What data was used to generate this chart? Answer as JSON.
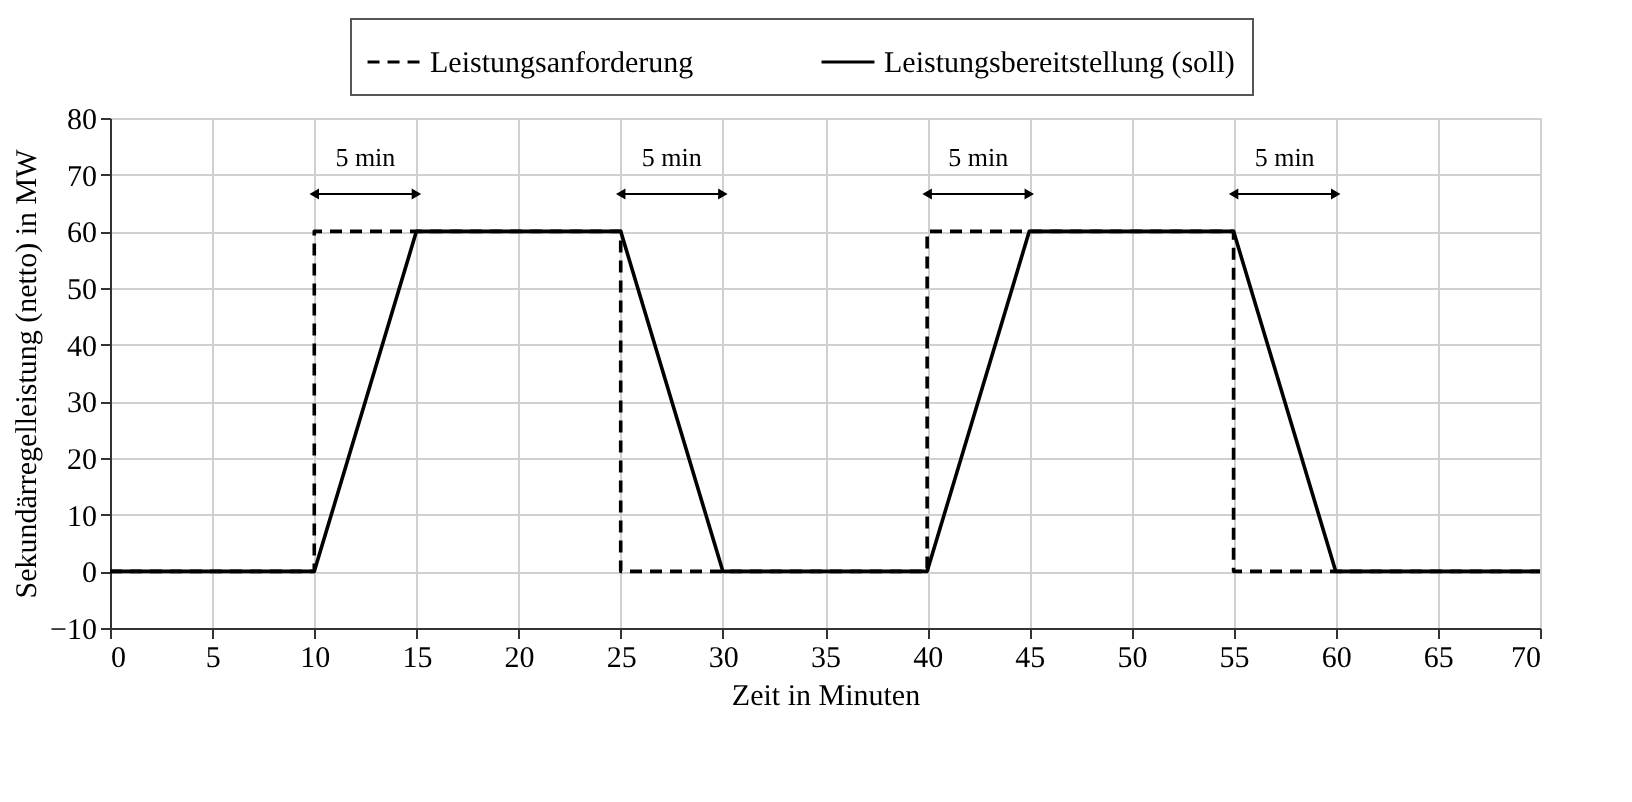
{
  "chart_data": {
    "type": "line",
    "xlabel": "Zeit in Minuten",
    "ylabel": "Sekundärregelleistung (netto) in MW",
    "series": [
      {
        "name": "Leistungsanforderung",
        "color": "#000000",
        "line_style": "dashed",
        "x": [
          0,
          10,
          10,
          25,
          25,
          40,
          40,
          55,
          55,
          70
        ],
        "values": [
          0,
          0,
          60,
          60,
          0,
          0,
          60,
          60,
          0,
          0
        ]
      },
      {
        "name": "Leistungsbereitstellung (soll)",
        "color": "#000000",
        "line_style": "solid",
        "x": [
          0,
          10,
          15,
          25,
          30,
          40,
          45,
          55,
          60,
          70
        ],
        "values": [
          0,
          0,
          60,
          60,
          0,
          0,
          60,
          60,
          0,
          0
        ]
      }
    ],
    "annotations": [
      "5 min",
      "5 min",
      "5 min",
      "5 min"
    ],
    "xlim": [
      0,
      70
    ],
    "xticks": [
      0,
      5,
      10,
      15,
      20,
      25,
      30,
      35,
      40,
      45,
      50,
      55,
      60,
      65,
      70
    ],
    "ylim": [
      -10,
      80
    ],
    "yticks": [
      -10,
      0,
      10,
      20,
      30,
      40,
      50,
      60,
      70,
      80
    ],
    "grid": true,
    "legend": "top",
    "marker": "none"
  }
}
